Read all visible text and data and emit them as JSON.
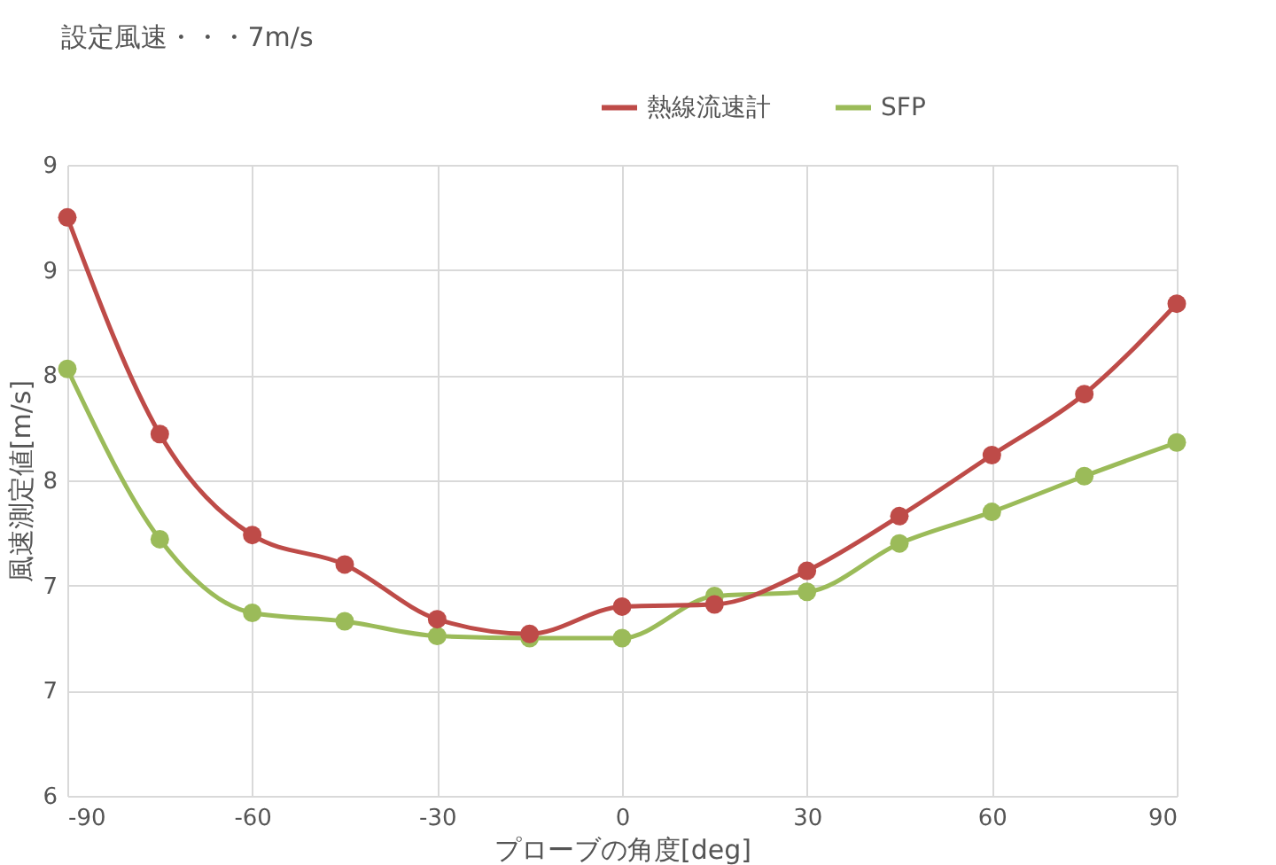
{
  "chart_data": {
    "type": "line",
    "title": "設定風速・・・7m/s",
    "xlabel": "プローブの角度[deg]",
    "ylabel": "風速測定値[m/s]",
    "x": [
      -90,
      -75,
      -60,
      -45,
      -30,
      -15,
      0,
      15,
      30,
      45,
      60,
      75,
      90
    ],
    "series": [
      {
        "name": "熱線流速計",
        "color": "#be4b48",
        "values": [
          8.75,
          7.72,
          7.24,
          7.1,
          6.84,
          6.77,
          6.9,
          6.91,
          7.07,
          7.33,
          7.62,
          7.91,
          8.34
        ]
      },
      {
        "name": "SFP",
        "color": "#9bbb59",
        "values": [
          8.03,
          7.22,
          6.87,
          6.83,
          6.76,
          6.75,
          6.75,
          6.95,
          6.97,
          7.2,
          7.35,
          7.52,
          7.68
        ]
      }
    ],
    "xlim": [
      -90,
      90
    ],
    "xticks": [
      -90,
      -60,
      -30,
      0,
      30,
      60,
      90
    ],
    "ylim": [
      6,
      9
    ],
    "yticks": [
      6,
      {
        "value": 6.5,
        "label": "7"
      },
      7,
      {
        "value": 7.5,
        "label": "8"
      },
      8,
      {
        "value": 8.5,
        "label": "9"
      },
      9
    ],
    "grid": true,
    "legend": "top right",
    "marker": "circle",
    "line_style": "solid"
  }
}
